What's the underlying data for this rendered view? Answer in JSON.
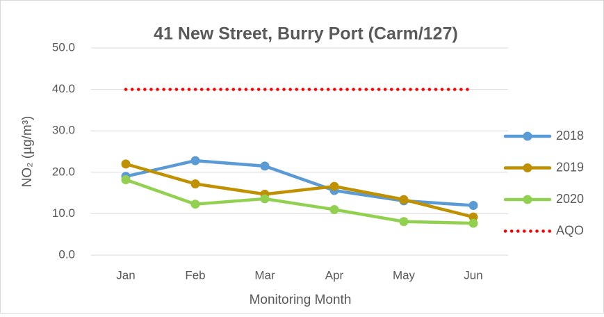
{
  "chart_data": {
    "type": "line",
    "title": "41 New Street, Burry Port (Carm/127)",
    "x_label": "Monitoring Month",
    "y_label": "NO₂ (µg/m³)",
    "categories": [
      "Jan",
      "Feb",
      "Mar",
      "Apr",
      "May",
      "Jun"
    ],
    "series": [
      {
        "name": "2018",
        "color": "#5b9bd5",
        "style": "solid",
        "values": [
          19.0,
          22.8,
          21.5,
          15.6,
          13.1,
          12.0
        ]
      },
      {
        "name": "2019",
        "color": "#bf9000",
        "style": "solid",
        "values": [
          22.0,
          17.2,
          14.7,
          16.6,
          13.4,
          9.2
        ]
      },
      {
        "name": "2020",
        "color": "#92d050",
        "style": "solid",
        "values": [
          18.2,
          12.3,
          13.6,
          11.0,
          8.1,
          7.7
        ]
      },
      {
        "name": "AQO",
        "color": "#ff0000",
        "style": "dotted",
        "values": [
          40,
          40,
          40,
          40,
          40,
          40
        ]
      }
    ],
    "ylim": [
      0,
      50
    ],
    "yticks": [
      {
        "value": 0,
        "label": "0.0"
      },
      {
        "value": 10,
        "label": "10.0"
      },
      {
        "value": 20,
        "label": "20.0"
      },
      {
        "value": 30,
        "label": "30.0"
      },
      {
        "value": 40,
        "label": "40.0"
      },
      {
        "value": 50,
        "label": "50.0"
      }
    ],
    "grid": true,
    "legend": "right"
  }
}
